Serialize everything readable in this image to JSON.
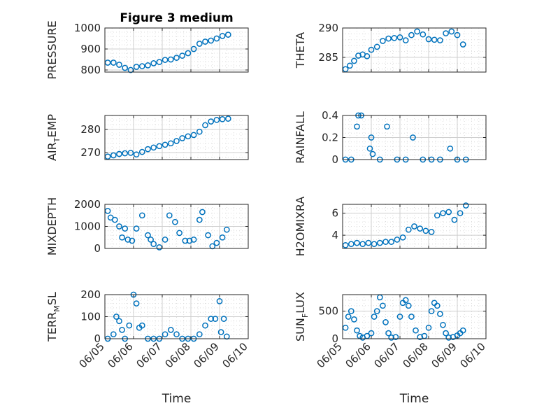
{
  "colors": {
    "marker": "#0072BD",
    "grid": "#dcdcdc",
    "axis": "#262626"
  },
  "chart_data": [
    {
      "id": "pressure",
      "type": "scatter",
      "title": "Figure 3 medium",
      "ylabel": "PRESSURE",
      "xlabel": "",
      "xlim": [
        "06/05",
        "06/10"
      ],
      "ylim": [
        790,
        1000
      ],
      "yticks": [
        800,
        900,
        1000
      ],
      "x_days": [
        5.1,
        5.3,
        5.5,
        5.7,
        5.9,
        6.1,
        6.3,
        6.5,
        6.7,
        6.9,
        7.1,
        7.3,
        7.5,
        7.7,
        7.9,
        8.1,
        8.3,
        8.5,
        8.7,
        8.9,
        9.1,
        9.3
      ],
      "values": [
        835,
        835,
        825,
        810,
        800,
        815,
        818,
        822,
        832,
        838,
        848,
        850,
        858,
        868,
        880,
        900,
        925,
        935,
        940,
        950,
        962,
        968
      ]
    },
    {
      "id": "theta",
      "type": "scatter",
      "title": "",
      "ylabel": "THETA",
      "xlabel": "",
      "xlim": [
        "06/05",
        "06/10"
      ],
      "ylim": [
        282.5,
        290
      ],
      "yticks": [
        285,
        290
      ],
      "x_days": [
        5.1,
        5.25,
        5.4,
        5.55,
        5.7,
        5.85,
        6.0,
        6.2,
        6.4,
        6.6,
        6.8,
        7.0,
        7.2,
        7.4,
        7.6,
        7.8,
        8.0,
        8.2,
        8.4,
        8.6,
        8.8,
        9.0,
        9.2
      ],
      "values": [
        283.0,
        283.6,
        284.4,
        285.3,
        285.5,
        285.2,
        286.3,
        286.8,
        287.8,
        288.2,
        288.3,
        288.4,
        287.9,
        288.8,
        289.4,
        288.9,
        288.1,
        288.0,
        287.9,
        289.1,
        289.4,
        288.8,
        287.2
      ]
    },
    {
      "id": "air_temp",
      "type": "scatter",
      "title": "",
      "ylabel": "AIR_TEMP",
      "xlabel": "",
      "xlim": [
        "06/05",
        "06/10"
      ],
      "ylim": [
        267,
        286
      ],
      "yticks": [
        270,
        280
      ],
      "x_days": [
        5.1,
        5.3,
        5.5,
        5.7,
        5.9,
        6.1,
        6.3,
        6.5,
        6.7,
        6.9,
        7.1,
        7.3,
        7.5,
        7.7,
        7.9,
        8.1,
        8.3,
        8.5,
        8.7,
        8.9,
        9.1,
        9.3
      ],
      "values": [
        268.3,
        268.8,
        269.4,
        269.7,
        269.9,
        269.2,
        270.3,
        271.5,
        272.2,
        272.8,
        273.4,
        274.0,
        275.0,
        276.2,
        277.0,
        277.6,
        279.0,
        281.8,
        283.4,
        284.1,
        284.4,
        284.6
      ]
    },
    {
      "id": "rainfall",
      "type": "scatter",
      "title": "",
      "ylabel": "RAINFALL",
      "xlabel": "",
      "xlim": [
        "06/05",
        "06/10"
      ],
      "ylim": [
        0,
        0.4
      ],
      "yticks": [
        0,
        0.2,
        0.4
      ],
      "x_days": [
        5.5,
        5.55,
        5.65,
        5.95,
        6.0,
        6.05,
        6.55,
        7.45,
        8.75,
        5.1,
        5.3,
        6.3,
        6.9,
        7.2,
        7.8,
        8.1,
        8.4,
        9.0,
        9.3
      ],
      "values": [
        0.3,
        0.4,
        0.4,
        0.1,
        0.2,
        0.05,
        0.3,
        0.2,
        0.1,
        0,
        0,
        0,
        0,
        0,
        0,
        0,
        0,
        0,
        0
      ]
    },
    {
      "id": "mixdepth",
      "type": "scatter",
      "title": "",
      "ylabel": "MIXDEPTH",
      "xlabel": "",
      "xlim": [
        "06/05",
        "06/10"
      ],
      "ylim": [
        0,
        2000
      ],
      "yticks": [
        0,
        1000,
        2000
      ],
      "x_days": [
        5.1,
        5.2,
        5.35,
        5.5,
        5.6,
        5.7,
        5.8,
        5.95,
        6.1,
        6.3,
        6.5,
        6.6,
        6.7,
        6.9,
        7.1,
        7.25,
        7.45,
        7.6,
        7.8,
        7.95,
        8.1,
        8.3,
        8.4,
        8.6,
        8.75,
        8.9,
        9.1,
        9.25
      ],
      "values": [
        1700,
        1400,
        1300,
        1000,
        500,
        900,
        400,
        350,
        900,
        1500,
        600,
        400,
        200,
        50,
        400,
        1500,
        1200,
        700,
        350,
        350,
        400,
        1300,
        1650,
        600,
        100,
        250,
        500,
        850
      ]
    },
    {
      "id": "h2omixra",
      "type": "scatter",
      "title": "",
      "ylabel": "H2OMIXRA",
      "xlabel": "",
      "xlim": [
        "06/05",
        "06/10"
      ],
      "ylim": [
        2.8,
        6.8
      ],
      "yticks": [
        4,
        6
      ],
      "x_days": [
        5.1,
        5.3,
        5.5,
        5.7,
        5.9,
        6.1,
        6.3,
        6.5,
        6.7,
        6.9,
        7.1,
        7.3,
        7.5,
        7.7,
        7.9,
        8.1,
        8.3,
        8.5,
        8.7,
        8.9,
        9.1,
        9.3
      ],
      "values": [
        3.1,
        3.2,
        3.3,
        3.2,
        3.3,
        3.2,
        3.3,
        3.4,
        3.4,
        3.6,
        3.8,
        4.5,
        4.8,
        4.6,
        4.4,
        4.3,
        5.8,
        6.0,
        6.1,
        5.4,
        6.0,
        6.7
      ]
    },
    {
      "id": "terr_msl",
      "type": "scatter",
      "title": "",
      "ylabel": "TERR_MSL",
      "xlabel": "Time",
      "xlim": [
        "06/05",
        "06/10"
      ],
      "ylim": [
        0,
        200
      ],
      "yticks": [
        0,
        100,
        200
      ],
      "xticks": [
        "06/05",
        "06/06",
        "06/07",
        "06/08",
        "06/09",
        "06/10"
      ],
      "x_days": [
        5.1,
        5.3,
        5.4,
        5.5,
        5.6,
        5.7,
        5.85,
        6.0,
        6.1,
        6.2,
        6.3,
        6.5,
        6.7,
        6.9,
        7.1,
        7.3,
        7.5,
        7.7,
        7.9,
        8.1,
        8.3,
        8.5,
        8.7,
        8.85,
        9.0,
        9.05,
        9.15,
        9.25
      ],
      "values": [
        0,
        20,
        100,
        80,
        40,
        0,
        60,
        200,
        160,
        50,
        60,
        0,
        0,
        0,
        20,
        40,
        20,
        0,
        0,
        0,
        20,
        60,
        90,
        90,
        170,
        30,
        90,
        10
      ]
    },
    {
      "id": "sun_flux",
      "type": "scatter",
      "title": "",
      "ylabel": "SUN_FLUX",
      "xlabel": "Time",
      "xlim": [
        "06/05",
        "06/10"
      ],
      "ylim": [
        0,
        800
      ],
      "yticks": [
        0,
        500
      ],
      "xticks": [
        "06/05",
        "06/06",
        "06/07",
        "06/08",
        "06/09",
        "06/10"
      ],
      "x_days": [
        5.1,
        5.2,
        5.3,
        5.4,
        5.5,
        5.6,
        5.7,
        5.85,
        6.0,
        6.1,
        6.2,
        6.3,
        6.4,
        6.5,
        6.6,
        6.7,
        6.85,
        7.0,
        7.1,
        7.2,
        7.3,
        7.4,
        7.55,
        7.7,
        7.85,
        8.0,
        8.1,
        8.2,
        8.3,
        8.4,
        8.5,
        8.6,
        8.7,
        8.85,
        9.0,
        9.1,
        9.2
      ],
      "values": [
        200,
        400,
        500,
        350,
        150,
        50,
        20,
        50,
        100,
        400,
        500,
        750,
        600,
        300,
        100,
        20,
        30,
        400,
        650,
        700,
        600,
        400,
        150,
        30,
        50,
        200,
        500,
        650,
        600,
        450,
        250,
        100,
        20,
        30,
        60,
        100,
        150
      ]
    }
  ]
}
